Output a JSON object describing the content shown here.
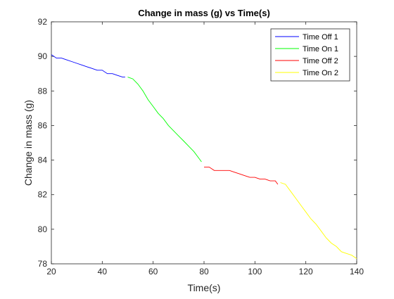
{
  "chart_data": {
    "type": "line",
    "title": "Change in mass (g) vs Time(s)",
    "xlabel": "Time(s)",
    "ylabel": "Change in mass (g)",
    "xlim": [
      20,
      140
    ],
    "ylim": [
      78,
      92
    ],
    "xticks": [
      20,
      40,
      60,
      80,
      100,
      120,
      140
    ],
    "yticks": [
      78,
      80,
      82,
      84,
      86,
      88,
      90,
      92
    ],
    "grid": false,
    "legend_position": "top-right",
    "series": [
      {
        "name": "Time Off 1",
        "color": "#0000ff",
        "x": [
          20,
          21,
          22,
          24,
          26,
          28,
          30,
          32,
          34,
          36,
          38,
          40,
          42,
          44,
          46,
          48,
          49
        ],
        "y": [
          90.1,
          90.0,
          89.9,
          89.9,
          89.8,
          89.7,
          89.6,
          89.5,
          89.4,
          89.3,
          89.2,
          89.2,
          89.0,
          89.0,
          88.9,
          88.8,
          88.8
        ]
      },
      {
        "name": "Time On 1",
        "color": "#00ff00",
        "x": [
          50,
          52,
          54,
          56,
          58,
          60,
          62,
          64,
          66,
          68,
          70,
          72,
          74,
          76,
          78,
          79
        ],
        "y": [
          88.8,
          88.7,
          88.4,
          88.0,
          87.5,
          87.1,
          86.7,
          86.4,
          86.0,
          85.7,
          85.4,
          85.1,
          84.8,
          84.5,
          84.1,
          83.9
        ]
      },
      {
        "name": "Time Off 2",
        "color": "#ff0000",
        "x": [
          80,
          82,
          84,
          86,
          88,
          90,
          92,
          94,
          96,
          98,
          100,
          102,
          104,
          106,
          108,
          109
        ],
        "y": [
          83.6,
          83.6,
          83.4,
          83.4,
          83.4,
          83.4,
          83.3,
          83.2,
          83.1,
          83.0,
          83.0,
          82.9,
          82.9,
          82.8,
          82.8,
          82.6
        ]
      },
      {
        "name": "Time On 2",
        "color": "#ffff00",
        "x": [
          110,
          112,
          114,
          116,
          118,
          120,
          122,
          124,
          126,
          128,
          130,
          132,
          134,
          136,
          138,
          140
        ],
        "y": [
          82.7,
          82.6,
          82.2,
          81.8,
          81.4,
          81.0,
          80.6,
          80.3,
          79.9,
          79.5,
          79.2,
          79.0,
          78.7,
          78.6,
          78.5,
          78.3
        ]
      }
    ]
  }
}
